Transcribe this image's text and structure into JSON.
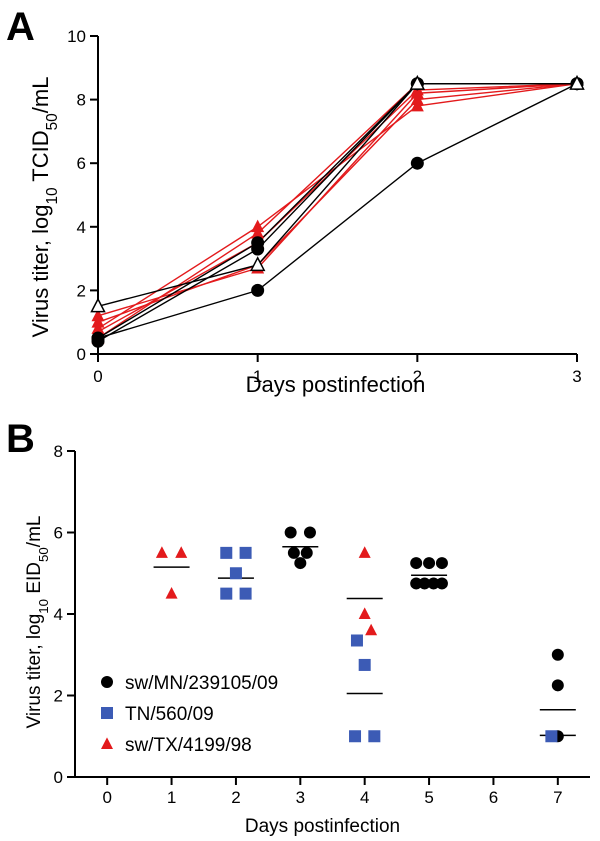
{
  "chart_data": [
    {
      "panel": "A",
      "type": "line",
      "xlabel": "Days postinfection",
      "ylabel_parts": [
        "Virus titer, log",
        "10",
        " TCID",
        "50",
        "/mL"
      ],
      "x": [
        0,
        1,
        2,
        3
      ],
      "xlim": [
        0,
        3
      ],
      "ylim": [
        0,
        10
      ],
      "xticks": [
        0,
        1,
        2,
        3
      ],
      "yticks": [
        0,
        2,
        4,
        6,
        8,
        10
      ],
      "grid": false,
      "series": [
        {
          "marker": "triangle",
          "color": "#e31a1c",
          "values": [
            0.8,
            4.0,
            7.8,
            8.5
          ]
        },
        {
          "marker": "triangle",
          "color": "#e31a1c",
          "values": [
            1.0,
            2.8,
            8.0,
            8.5
          ]
        },
        {
          "marker": "triangle",
          "color": "#e31a1c",
          "values": [
            1.2,
            2.7,
            8.2,
            8.5
          ]
        },
        {
          "marker": "triangle",
          "color": "#e31a1c",
          "values": [
            0.5,
            3.8,
            8.5,
            8.5
          ]
        },
        {
          "marker": "triangle",
          "color": "#e31a1c",
          "values": [
            0.7,
            3.5,
            8.3,
            8.5
          ]
        },
        {
          "marker": "circle",
          "color": "#000000",
          "values": [
            0.5,
            3.5,
            8.5,
            8.5
          ]
        },
        {
          "marker": "circle",
          "color": "#000000",
          "values": [
            0.4,
            3.3,
            8.5,
            8.5
          ]
        },
        {
          "marker": "circle",
          "color": "#000000",
          "values": [
            0.5,
            2.0,
            6.0,
            8.5
          ]
        },
        {
          "marker": "triangle-open",
          "color": "#000000",
          "values": [
            1.5,
            2.8,
            8.5,
            8.5
          ]
        }
      ]
    },
    {
      "panel": "B",
      "type": "scatter",
      "xlabel": "Days postinfection",
      "ylabel_parts": [
        "Virus titer, log",
        "10",
        " EID",
        "50",
        "/mL"
      ],
      "xlim": [
        -0.5,
        7.5
      ],
      "ylim": [
        0,
        8
      ],
      "xticks": [
        0,
        1,
        2,
        3,
        4,
        5,
        6,
        7
      ],
      "yticks": [
        0,
        2,
        4,
        6,
        8
      ],
      "grid": false,
      "legend_position": "bottom-left",
      "series": [
        {
          "name": "sw/MN/239105/09",
          "marker": "circle",
          "color": "#000000",
          "points": [
            [
              2.85,
              6.0
            ],
            [
              3.15,
              6.0
            ],
            [
              2.9,
              5.5
            ],
            [
              3.1,
              5.5
            ],
            [
              3.0,
              5.25
            ],
            [
              4.8,
              5.25
            ],
            [
              5.0,
              5.25
            ],
            [
              5.2,
              5.25
            ],
            [
              4.8,
              4.75
            ],
            [
              4.93,
              4.75
            ],
            [
              5.07,
              4.75
            ],
            [
              5.2,
              4.75
            ],
            [
              7.0,
              3.0
            ],
            [
              7.0,
              2.25
            ],
            [
              7.0,
              1.0
            ]
          ],
          "means": [
            {
              "x": 3.0,
              "y": 5.65
            },
            {
              "x": 5.0,
              "y": 4.95
            },
            {
              "x": 7.0,
              "y": 1.65
            }
          ]
        },
        {
          "name": "TN/560/09",
          "marker": "square",
          "color": "#3c5bb5",
          "points": [
            [
              1.85,
              5.5
            ],
            [
              2.15,
              5.5
            ],
            [
              2.0,
              5.0
            ],
            [
              1.85,
              4.5
            ],
            [
              2.15,
              4.5
            ],
            [
              3.88,
              3.35
            ],
            [
              4.0,
              2.75
            ],
            [
              3.85,
              1.0
            ],
            [
              4.15,
              1.0
            ],
            [
              6.9,
              1.0
            ]
          ],
          "means": [
            {
              "x": 2.0,
              "y": 4.88
            },
            {
              "x": 4.0,
              "y": 2.05
            }
          ]
        },
        {
          "name": "sw/TX/4199/98",
          "marker": "triangle",
          "color": "#e31a1c",
          "points": [
            [
              0.85,
              5.5
            ],
            [
              1.15,
              5.5
            ],
            [
              1.0,
              4.5
            ],
            [
              4.0,
              5.5
            ],
            [
              4.0,
              4.0
            ],
            [
              4.1,
              3.6
            ]
          ],
          "means": [
            {
              "x": 1.0,
              "y": 5.15
            },
            {
              "x": 4.0,
              "y": 4.38
            }
          ]
        }
      ],
      "extra_means": [
        {
          "x": 7.0,
          "y": 1.02
        }
      ]
    }
  ]
}
